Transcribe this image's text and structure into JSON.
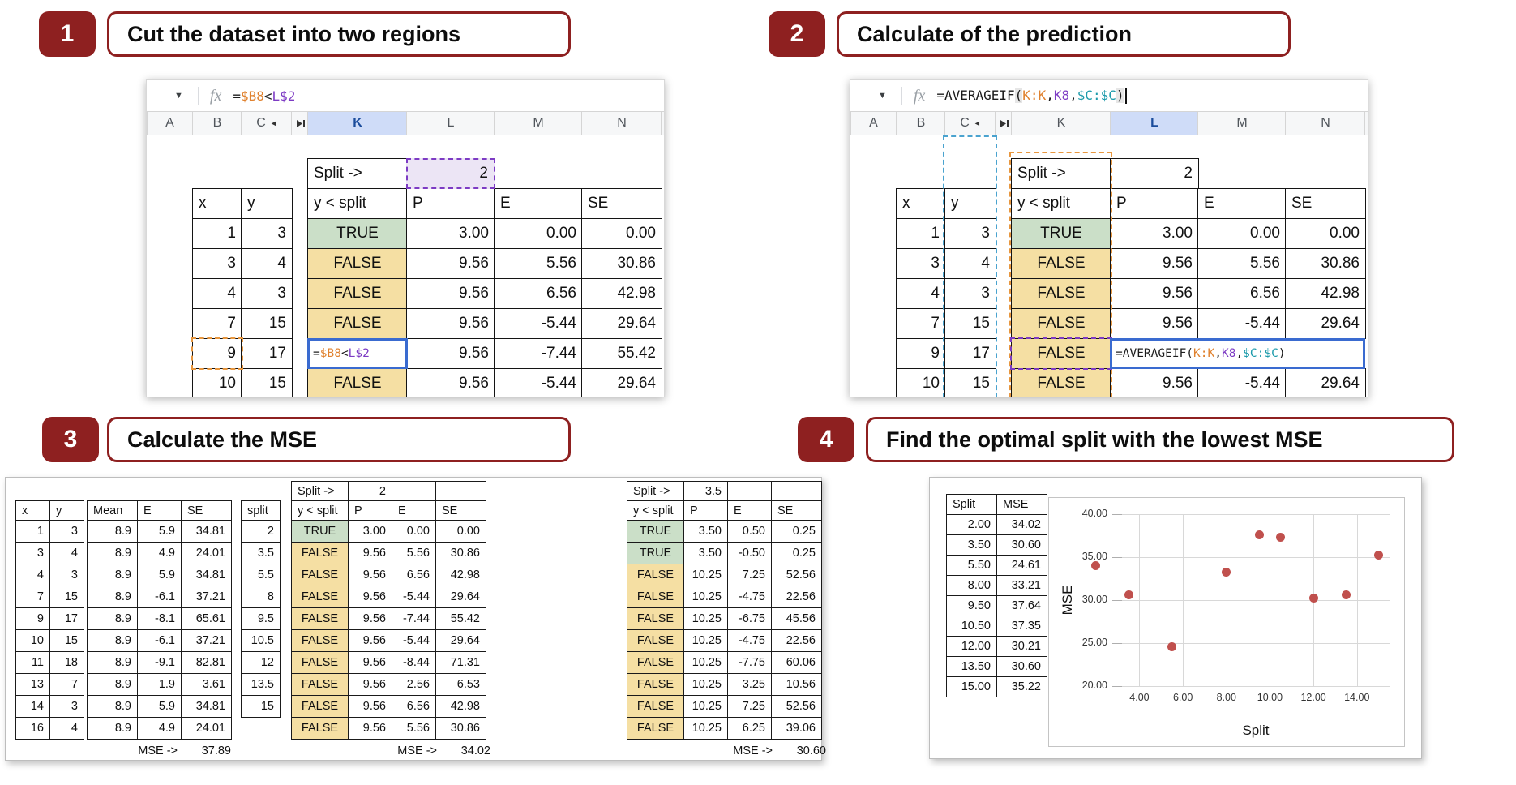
{
  "colors": {
    "accent_red": "#8e2020",
    "true_bg": "#cbdfc8",
    "false_bg": "#f5dfa3",
    "selected_cell_bg": "#ece5f5",
    "active_header_bg": "#cfdcf8",
    "formula": {
      "k": "#1c1c1c",
      "o": "#e0822f",
      "p": "#7d3bc4",
      "t": "#1d9bab",
      "hl_bg": "#e6e6e6"
    },
    "reference_orange": "#e8973f",
    "reference_blue": "#4aa3cf",
    "formula_border_blue": "#3a6bd0",
    "point": "#c0504d"
  },
  "step1": {
    "badge": "1",
    "title": "Cut the dataset into two regions"
  },
  "step2": {
    "badge": "2",
    "title": "Calculate of the prediction"
  },
  "step3": {
    "badge": "3",
    "title": "Calculate the MSE"
  },
  "step4": {
    "badge": "4",
    "title": "Find the optimal split with the lowest MSE"
  },
  "sheet_columns": [
    "A",
    "B",
    "C",
    "K",
    "L",
    "M",
    "N"
  ],
  "sheet1": {
    "active_column": "K",
    "formula_bar": [
      {
        "t": "=",
        "c": "k"
      },
      {
        "t": "$B8",
        "c": "o"
      },
      {
        "t": "<",
        "c": "k"
      },
      {
        "t": "L$2",
        "c": "p"
      }
    ],
    "split_label": "Split ->",
    "split_value": "2",
    "headers": [
      "x",
      "y",
      "y < split",
      "P",
      "E",
      "SE"
    ],
    "rows": [
      [
        "1",
        "3",
        "TRUE",
        "3.00",
        "0.00",
        "0.00"
      ],
      [
        "3",
        "4",
        "FALSE",
        "9.56",
        "5.56",
        "30.86"
      ],
      [
        "4",
        "3",
        "FALSE",
        "9.56",
        "6.56",
        "42.98"
      ],
      [
        "7",
        "15",
        "FALSE",
        "9.56",
        "-5.44",
        "29.64"
      ],
      [
        "9",
        "17",
        "FORMULA",
        "9.56",
        "-7.44",
        "55.42"
      ],
      [
        "10",
        "15",
        "FALSE",
        "9.56",
        "-5.44",
        "29.64"
      ]
    ],
    "formula_row_index": 4,
    "cell_formula": [
      {
        "t": "=",
        "c": "k"
      },
      {
        "t": "$B8",
        "c": "o"
      },
      {
        "t": "<",
        "c": "k"
      },
      {
        "t": "L$2",
        "c": "p"
      }
    ]
  },
  "sheet2": {
    "active_column": "L",
    "formula_bar": [
      {
        "t": "=AVERAGEIF",
        "c": "k"
      },
      {
        "t": "(",
        "c": "k",
        "h": true
      },
      {
        "t": "K:K",
        "c": "o"
      },
      {
        "t": ",",
        "c": "k"
      },
      {
        "t": "K8",
        "c": "p"
      },
      {
        "t": ",",
        "c": "k"
      },
      {
        "t": "$C:$C",
        "c": "t"
      },
      {
        "t": ")",
        "c": "k",
        "h": true
      },
      {
        "t": "",
        "c": "k",
        "cursor": true
      }
    ],
    "split_label": "Split ->",
    "split_value": "2",
    "headers": [
      "x",
      "y",
      "y < split",
      "P",
      "E",
      "SE"
    ],
    "rows": [
      [
        "1",
        "3",
        "TRUE",
        "3.00",
        "0.00",
        "0.00"
      ],
      [
        "3",
        "4",
        "FALSE",
        "9.56",
        "5.56",
        "30.86"
      ],
      [
        "4",
        "3",
        "FALSE",
        "9.56",
        "6.56",
        "42.98"
      ],
      [
        "7",
        "15",
        "FALSE",
        "9.56",
        "-5.44",
        "29.64"
      ],
      [
        "9",
        "17",
        "FALSE",
        "9.56",
        "-7.44",
        "55.42"
      ],
      [
        "10",
        "15",
        "FALSE",
        "9.56",
        "-5.44",
        "29.64"
      ]
    ],
    "formula_row_index": 4,
    "cell_formula": [
      {
        "t": "=AVERAGEIF(",
        "c": "k"
      },
      {
        "t": "K:K",
        "c": "o"
      },
      {
        "t": ",",
        "c": "k"
      },
      {
        "t": "K8",
        "c": "p"
      },
      {
        "t": ",",
        "c": "k"
      },
      {
        "t": "$C:$C",
        "c": "t"
      },
      {
        "t": ")",
        "c": "k"
      }
    ]
  },
  "mse_panel": {
    "xy": {
      "headers": [
        "x",
        "y"
      ],
      "rows": [
        [
          "1",
          "3"
        ],
        [
          "3",
          "4"
        ],
        [
          "4",
          "3"
        ],
        [
          "7",
          "15"
        ],
        [
          "9",
          "17"
        ],
        [
          "10",
          "15"
        ],
        [
          "11",
          "18"
        ],
        [
          "13",
          "7"
        ],
        [
          "14",
          "3"
        ],
        [
          "16",
          "4"
        ]
      ]
    },
    "mean": {
      "headers": [
        "Mean",
        "E",
        "SE"
      ],
      "rows": [
        [
          "8.9",
          "5.9",
          "34.81"
        ],
        [
          "8.9",
          "4.9",
          "24.01"
        ],
        [
          "8.9",
          "5.9",
          "34.81"
        ],
        [
          "8.9",
          "-6.1",
          "37.21"
        ],
        [
          "8.9",
          "-8.1",
          "65.61"
        ],
        [
          "8.9",
          "-6.1",
          "37.21"
        ],
        [
          "8.9",
          "-9.1",
          "82.81"
        ],
        [
          "8.9",
          "1.9",
          "3.61"
        ],
        [
          "8.9",
          "5.9",
          "34.81"
        ],
        [
          "8.9",
          "4.9",
          "24.01"
        ]
      ],
      "mse_label": "MSE ->",
      "mse_value": "37.89"
    },
    "split_col": {
      "header": "split",
      "values": [
        "2",
        "3.5",
        "5.5",
        "8",
        "9.5",
        "10.5",
        "12",
        "13.5",
        "15"
      ]
    },
    "split2": {
      "split_label": "Split ->",
      "split_value": "2",
      "headers": [
        "y < split",
        "P",
        "E",
        "SE"
      ],
      "rows": [
        [
          "TRUE",
          "3.00",
          "0.00",
          "0.00"
        ],
        [
          "FALSE",
          "9.56",
          "5.56",
          "30.86"
        ],
        [
          "FALSE",
          "9.56",
          "6.56",
          "42.98"
        ],
        [
          "FALSE",
          "9.56",
          "-5.44",
          "29.64"
        ],
        [
          "FALSE",
          "9.56",
          "-7.44",
          "55.42"
        ],
        [
          "FALSE",
          "9.56",
          "-5.44",
          "29.64"
        ],
        [
          "FALSE",
          "9.56",
          "-8.44",
          "71.31"
        ],
        [
          "FALSE",
          "9.56",
          "2.56",
          "6.53"
        ],
        [
          "FALSE",
          "9.56",
          "6.56",
          "42.98"
        ],
        [
          "FALSE",
          "9.56",
          "5.56",
          "30.86"
        ]
      ],
      "mse_label": "MSE ->",
      "mse_value": "34.02"
    },
    "split35": {
      "split_label": "Split ->",
      "split_value": "3.5",
      "headers": [
        "y < split",
        "P",
        "E",
        "SE"
      ],
      "rows": [
        [
          "TRUE",
          "3.50",
          "0.50",
          "0.25"
        ],
        [
          "TRUE",
          "3.50",
          "-0.50",
          "0.25"
        ],
        [
          "FALSE",
          "10.25",
          "7.25",
          "52.56"
        ],
        [
          "FALSE",
          "10.25",
          "-4.75",
          "22.56"
        ],
        [
          "FALSE",
          "10.25",
          "-6.75",
          "45.56"
        ],
        [
          "FALSE",
          "10.25",
          "-4.75",
          "22.56"
        ],
        [
          "FALSE",
          "10.25",
          "-7.75",
          "60.06"
        ],
        [
          "FALSE",
          "10.25",
          "3.25",
          "10.56"
        ],
        [
          "FALSE",
          "10.25",
          "7.25",
          "52.56"
        ],
        [
          "FALSE",
          "10.25",
          "6.25",
          "39.06"
        ]
      ],
      "mse_label": "MSE ->",
      "mse_value": "30.60"
    }
  },
  "step4_table": {
    "headers": [
      "Split",
      "MSE"
    ],
    "rows": [
      [
        "2.00",
        "34.02"
      ],
      [
        "3.50",
        "30.60"
      ],
      [
        "5.50",
        "24.61"
      ],
      [
        "8.00",
        "33.21"
      ],
      [
        "9.50",
        "37.64"
      ],
      [
        "10.50",
        "37.35"
      ],
      [
        "12.00",
        "30.21"
      ],
      [
        "13.50",
        "30.60"
      ],
      [
        "15.00",
        "35.22"
      ]
    ]
  },
  "chart_data": {
    "type": "scatter",
    "title": "",
    "xlabel": "Split",
    "ylabel": "MSE",
    "x": [
      2.0,
      3.5,
      5.5,
      8.0,
      9.5,
      10.5,
      12.0,
      13.5,
      15.0
    ],
    "y": [
      34.02,
      30.6,
      24.61,
      33.21,
      37.64,
      37.35,
      30.21,
      30.6,
      35.22
    ],
    "xlim": [
      3.2,
      15.5
    ],
    "ylim": [
      20,
      40
    ],
    "xticks": [
      4,
      6,
      8,
      10,
      12,
      14
    ],
    "yticks": [
      20,
      25,
      30,
      35,
      40
    ],
    "tick_decimals": 2,
    "point_color": "#c0504d",
    "grid": true,
    "legend": "none"
  }
}
